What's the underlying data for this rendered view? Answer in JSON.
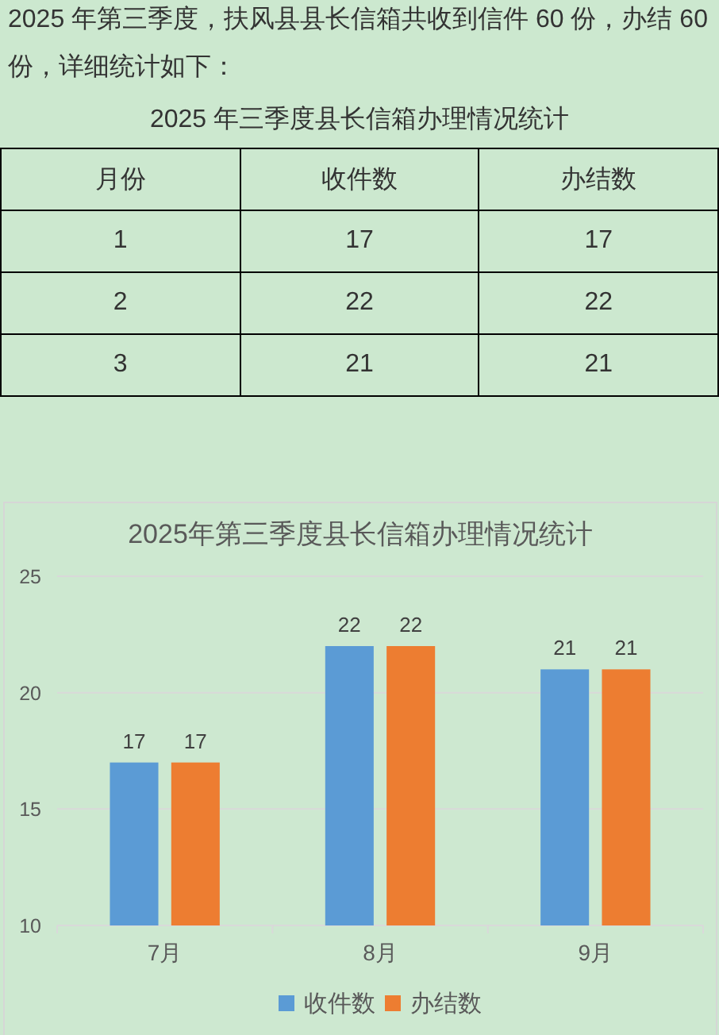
{
  "chart_data": [
    {
      "type": "other",
      "annotations": [
        "2025 年第三季度，扶风县县长信箱共收到信件 60 份，办结 60 份，详细统计如下："
      ],
      "title": "2025 年三季度县长信箱办理情况统计",
      "xlabel": "月份",
      "categories": [
        "1",
        "2",
        "3"
      ],
      "series": [
        {
          "name": "收件数",
          "values": [
            17,
            22,
            21
          ]
        },
        {
          "name": "办结数",
          "values": [
            17,
            22,
            21
          ]
        }
      ],
      "data_labels": true
    },
    {
      "type": "bar",
      "title": "2025年第三季度县长信箱办理情况统计",
      "categories": [
        "7月",
        "8月",
        "9月"
      ],
      "series": [
        {
          "name": "收件数",
          "color": "#5b9bd5",
          "values": [
            17,
            22,
            21
          ]
        },
        {
          "name": "办结数",
          "color": "#ed7d31",
          "values": [
            17,
            22,
            21
          ]
        }
      ],
      "ylim": [
        10,
        25
      ],
      "yticks": [
        10,
        15,
        20,
        25
      ],
      "grid": "y",
      "legend": "bottom",
      "data_labels": true
    }
  ]
}
